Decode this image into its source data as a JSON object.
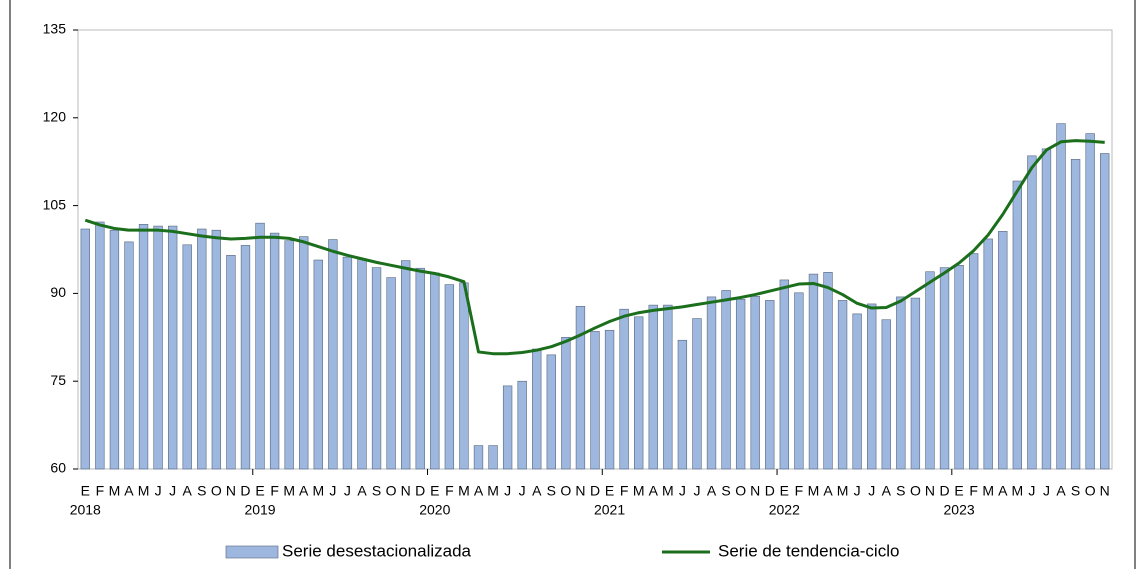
{
  "chart_data": {
    "type": "bar-line",
    "categories": [
      "E",
      "F",
      "M",
      "A",
      "M",
      "J",
      "J",
      "A",
      "S",
      "O",
      "N",
      "D",
      "E",
      "F",
      "M",
      "A",
      "M",
      "J",
      "J",
      "A",
      "S",
      "O",
      "N",
      "D",
      "E",
      "F",
      "M",
      "A",
      "M",
      "J",
      "J",
      "A",
      "S",
      "O",
      "N",
      "D",
      "E",
      "F",
      "M",
      "A",
      "M",
      "J",
      "J",
      "A",
      "S",
      "O",
      "N",
      "D",
      "E",
      "F",
      "M",
      "A",
      "M",
      "J",
      "J",
      "A",
      "S",
      "O",
      "N",
      "D",
      "E",
      "F",
      "M",
      "A",
      "M",
      "J",
      "J",
      "A",
      "S",
      "O",
      "N"
    ],
    "years": [
      "2018",
      "2019",
      "2020",
      "2021",
      "2022",
      "2023"
    ],
    "ylim": [
      60,
      135
    ],
    "yticks": [
      60,
      75,
      90,
      105,
      120,
      135
    ],
    "grid": false,
    "legend": "bottom",
    "series": [
      {
        "name": "Serie desestacionalizada",
        "type": "bar",
        "color": "#9db7df",
        "values": [
          101.0,
          102.2,
          100.8,
          98.8,
          101.8,
          101.5,
          101.5,
          98.3,
          101.0,
          100.8,
          96.5,
          98.2,
          102.0,
          100.3,
          99.0,
          99.7,
          95.7,
          99.2,
          96.2,
          95.8,
          94.4,
          92.7,
          95.6,
          94.3,
          93.5,
          91.5,
          91.8,
          64.0,
          64.0,
          74.2,
          75.0,
          80.5,
          79.5,
          82.5,
          87.8,
          83.5,
          83.7,
          87.3,
          86.0,
          88.0,
          88.0,
          82.0,
          85.7,
          89.4,
          90.5,
          89.0,
          89.5,
          88.8,
          92.3,
          90.1,
          93.3,
          93.6,
          88.8,
          86.5,
          88.2,
          85.5,
          89.4,
          89.2,
          93.7,
          94.4,
          94.8,
          96.8,
          99.3,
          100.6,
          109.2,
          113.5,
          114.7,
          119.0,
          112.9,
          117.3,
          113.9
        ]
      },
      {
        "name": "Serie de tendencia-ciclo",
        "type": "line",
        "color": "#1b6e1b",
        "values": [
          102.5,
          101.7,
          101.1,
          100.8,
          100.8,
          100.8,
          100.6,
          100.2,
          99.8,
          99.5,
          99.3,
          99.4,
          99.6,
          99.6,
          99.4,
          98.8,
          98.0,
          97.2,
          96.5,
          95.9,
          95.3,
          94.8,
          94.3,
          93.8,
          93.4,
          92.8,
          92.0,
          80.0,
          79.7,
          79.7,
          79.9,
          80.3,
          80.9,
          81.8,
          82.9,
          84.1,
          85.2,
          86.1,
          86.7,
          87.1,
          87.4,
          87.7,
          88.1,
          88.5,
          88.9,
          89.3,
          89.8,
          90.4,
          91.0,
          91.6,
          91.7,
          91.0,
          89.8,
          88.3,
          87.5,
          87.6,
          88.7,
          90.3,
          91.9,
          93.5,
          95.2,
          97.3,
          100.0,
          103.5,
          107.5,
          111.5,
          114.5,
          115.9,
          116.1,
          116.0,
          115.8
        ]
      }
    ]
  }
}
